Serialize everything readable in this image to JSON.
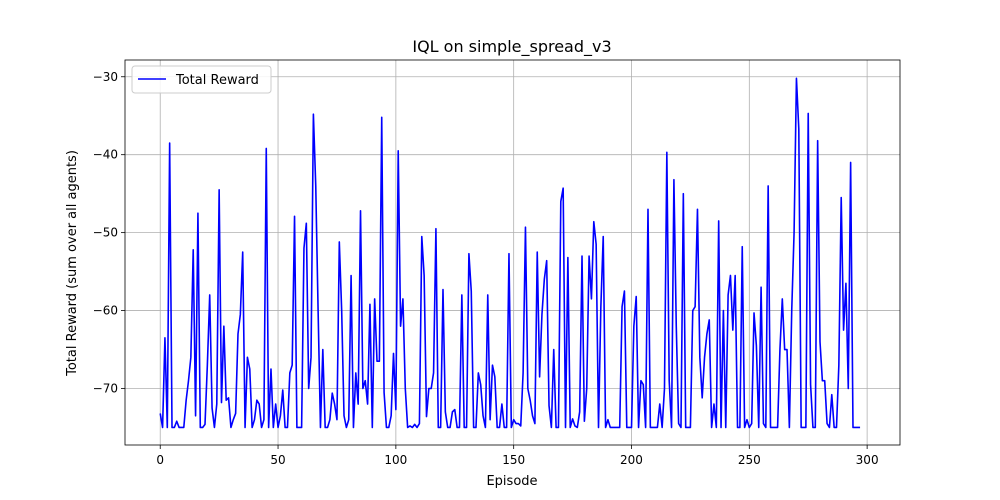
{
  "chart_data": {
    "type": "line",
    "title": "IQL on simple_spread_v3",
    "xlabel": "Episode",
    "ylabel": "Total Reward (sum over all agents)",
    "xlim": [
      -14.95,
      313.95
    ],
    "ylim": [
      -77.25,
      -27.85
    ],
    "xticks": [
      0,
      50,
      100,
      150,
      200,
      250,
      300
    ],
    "yticks": [
      -70,
      -60,
      -50,
      -40,
      -30
    ],
    "grid": true,
    "legend_position": "top-left",
    "series": [
      {
        "name": "Total Reward",
        "color": "#0000ff",
        "x_start": 0,
        "values": [
          -73.2,
          -75.0,
          -63.5,
          -75.0,
          -38.5,
          -75.0,
          -75.0,
          -74.2,
          -75.0,
          -75.0,
          -75.0,
          -71.5,
          -69.0,
          -66.0,
          -52.2,
          -73.5,
          -47.5,
          -75.0,
          -75.0,
          -74.6,
          -67.0,
          -58.0,
          -72.5,
          -75.0,
          -72.0,
          -44.5,
          -71.8,
          -62.0,
          -71.5,
          -71.2,
          -75.0,
          -74.0,
          -73.2,
          -63.0,
          -60.5,
          -52.5,
          -75.0,
          -66.0,
          -67.5,
          -75.0,
          -74.0,
          -71.5,
          -72.0,
          -75.0,
          -74.0,
          -39.2,
          -75.0,
          -67.5,
          -75.0,
          -72.0,
          -75.0,
          -73.5,
          -70.2,
          -75.0,
          -75.0,
          -68.0,
          -67.0,
          -47.9,
          -75.0,
          -75.0,
          -75.0,
          -52.0,
          -48.8,
          -70.0,
          -66.0,
          -34.8,
          -44.0,
          -60.0,
          -75.0,
          -65.0,
          -75.0,
          -75.0,
          -74.0,
          -70.6,
          -72.0,
          -74.0,
          -51.2,
          -60.0,
          -73.5,
          -75.0,
          -74.0,
          -55.5,
          -75.0,
          -68.0,
          -72.0,
          -47.2,
          -70.0,
          -69.0,
          -72.0,
          -59.2,
          -75.0,
          -58.5,
          -66.5,
          -66.5,
          -35.2,
          -70.5,
          -75.0,
          -75.0,
          -73.5,
          -65.5,
          -72.7,
          -39.5,
          -62.0,
          -58.5,
          -70.0,
          -75.0,
          -74.8,
          -75.0,
          -74.6,
          -75.0,
          -74.5,
          -50.5,
          -55.5,
          -73.6,
          -70.0,
          -70.0,
          -68.0,
          -49.5,
          -75.0,
          -75.0,
          -57.3,
          -73.0,
          -75.0,
          -75.0,
          -73.0,
          -72.7,
          -75.0,
          -75.0,
          -58.0,
          -75.0,
          -75.0,
          -52.7,
          -57.5,
          -75.0,
          -75.0,
          -68.0,
          -69.5,
          -73.5,
          -75.0,
          -58.0,
          -74.0,
          -67.0,
          -68.5,
          -75.0,
          -75.0,
          -72.0,
          -75.0,
          -75.0,
          -52.7,
          -75.0,
          -74.0,
          -74.5,
          -74.5,
          -74.8,
          -68.0,
          -49.3,
          -70.0,
          -71.5,
          -73.5,
          -74.5,
          -52.5,
          -68.5,
          -60.5,
          -56.0,
          -53.6,
          -72.2,
          -75.0,
          -65.0,
          -75.0,
          -75.0,
          -46.0,
          -44.3,
          -75.0,
          -53.2,
          -75.0,
          -73.9,
          -74.8,
          -75.0,
          -73.0,
          -53.0,
          -74.2,
          -70.0,
          -53.0,
          -58.5,
          -48.6,
          -51.5,
          -75.0,
          -59.5,
          -50.5,
          -75.0,
          -74.0,
          -75.0,
          -75.0,
          -75.0,
          -75.0,
          -75.0,
          -59.5,
          -57.5,
          -75.0,
          -75.0,
          -75.0,
          -62.0,
          -58.2,
          -75.0,
          -69.0,
          -69.5,
          -75.0,
          -47.0,
          -75.0,
          -75.0,
          -75.0,
          -75.0,
          -72.0,
          -75.0,
          -70.0,
          -39.7,
          -69.0,
          -75.0,
          -43.2,
          -62.0,
          -74.5,
          -75.0,
          -45.0,
          -75.0,
          -75.0,
          -75.0,
          -60.0,
          -59.5,
          -47.0,
          -66.0,
          -71.2,
          -66.0,
          -63.0,
          -61.2,
          -75.0,
          -72.0,
          -75.0,
          -48.5,
          -75.0,
          -60.0,
          -75.0,
          -58.0,
          -55.5,
          -62.5,
          -55.5,
          -75.0,
          -75.0,
          -51.8,
          -75.0,
          -74.0,
          -75.0,
          -74.5,
          -60.3,
          -64.5,
          -75.0,
          -57.0,
          -74.5,
          -75.0,
          -44.0,
          -75.0,
          -75.0,
          -75.0,
          -75.0,
          -65.0,
          -58.5,
          -65.0,
          -65.0,
          -75.0,
          -60.0,
          -50.0,
          -30.2,
          -36.7,
          -75.0,
          -75.0,
          -75.0,
          -34.7,
          -69.5,
          -75.0,
          -75.0,
          -38.2,
          -64.0,
          -69.0,
          -69.0,
          -74.5,
          -75.0,
          -70.8,
          -75.0,
          -75.0,
          -67.0,
          -45.5,
          -62.5,
          -56.5,
          -70.0,
          -41.0,
          -75.0,
          -75.0,
          -75.0,
          -75.0
        ]
      }
    ]
  }
}
